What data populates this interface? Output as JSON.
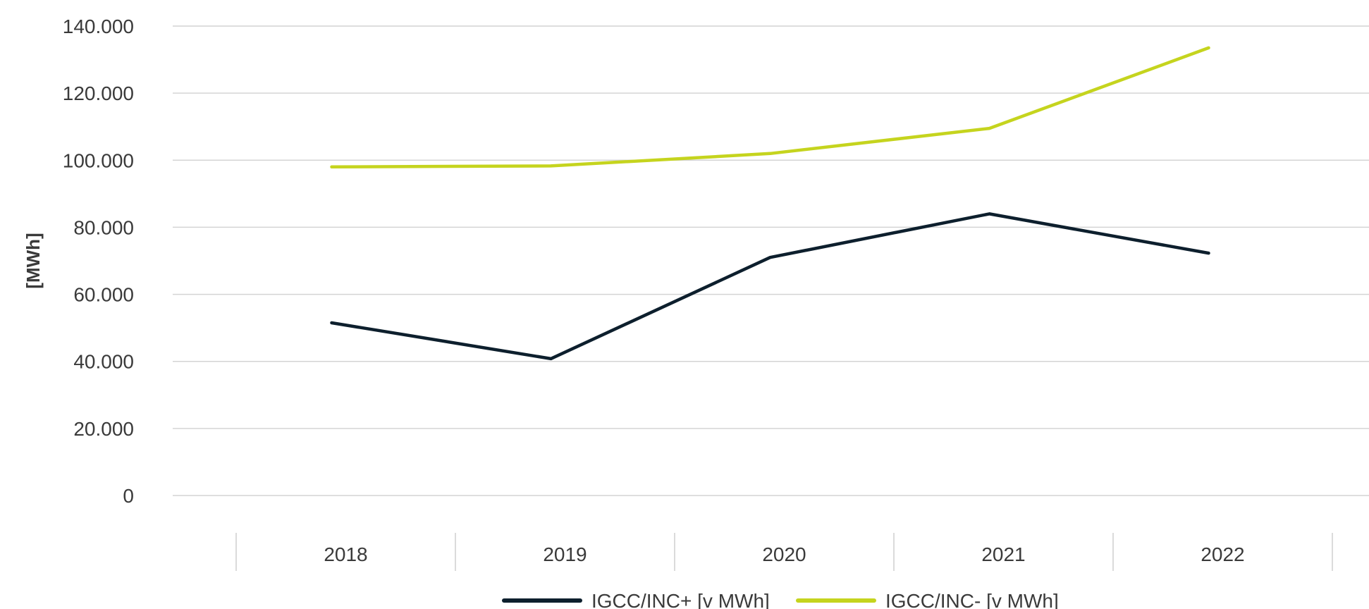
{
  "chart_data": {
    "type": "line",
    "title": "",
    "xlabel": "",
    "ylabel": "[MWh]",
    "categories": [
      "2018",
      "2019",
      "2020",
      "2021",
      "2022"
    ],
    "ylim": [
      0,
      140000
    ],
    "yticks": [
      0,
      20000,
      40000,
      60000,
      80000,
      100000,
      120000,
      140000
    ],
    "ytick_labels": [
      "0",
      "20.000",
      "40.000",
      "60.000",
      "80.000",
      "100.000",
      "120.000",
      "140.000"
    ],
    "grid": true,
    "legend_position": "bottom-center",
    "series": [
      {
        "name": "IGCC/INC+ [v MWh]",
        "color": "#0d1f2d",
        "values": [
          51500,
          40800,
          71000,
          84000,
          72300
        ]
      },
      {
        "name": "IGCC/INC- [v MWh]",
        "color": "#c5d41e",
        "values": [
          98000,
          98300,
          102000,
          109500,
          133500
        ]
      }
    ]
  }
}
